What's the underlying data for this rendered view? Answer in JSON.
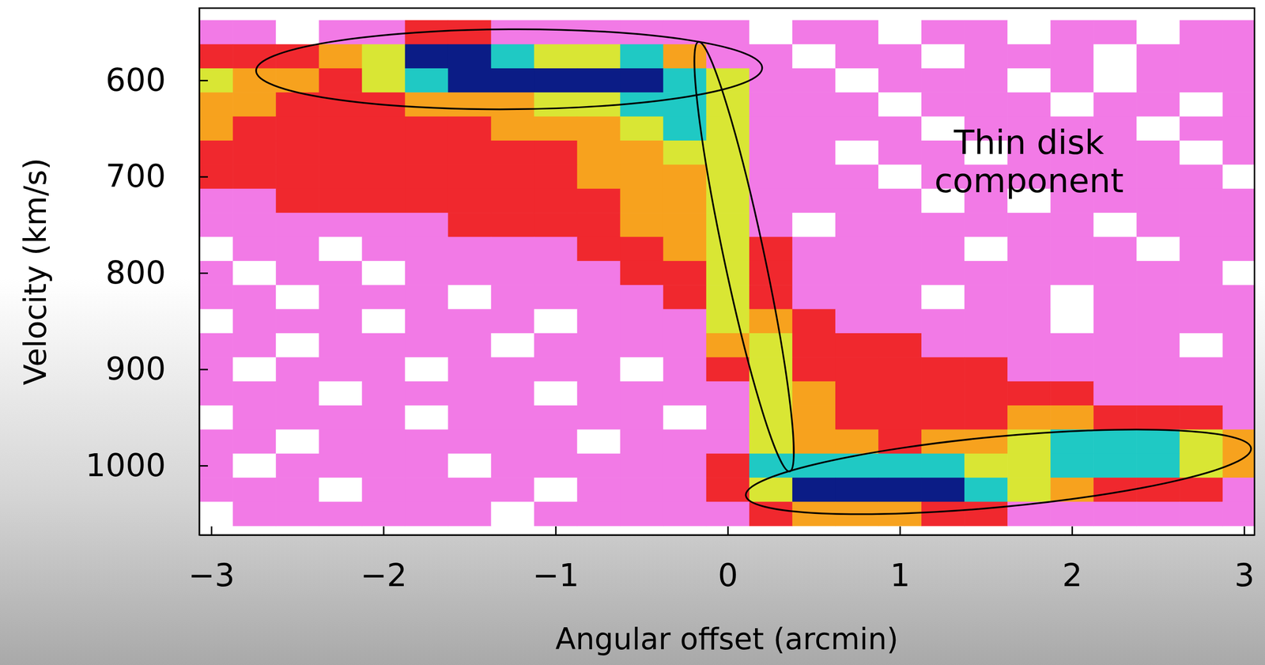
{
  "chart_data": {
    "type": "heatmap",
    "xlabel": "Angular offset (arcmin)",
    "ylabel": "Velocity (km/s)",
    "xlim": [
      -3.07,
      3.06
    ],
    "ylim": [
      1072,
      525
    ],
    "xticks": [
      {
        "value": -3,
        "label": "−3"
      },
      {
        "value": -2,
        "label": "−2"
      },
      {
        "value": -1,
        "label": "−1"
      },
      0,
      1,
      2,
      3
    ],
    "yticks": [
      600,
      700,
      800,
      900,
      1000
    ],
    "colors": [
      "#ffffff",
      "#f27ae6",
      "#f0282e",
      "#f7a21e",
      "#d9e634",
      "#1fc9c4",
      "#0b1c86"
    ],
    "x": [
      -3,
      -2.75,
      -2.5,
      -2.25,
      -2,
      -1.75,
      -1.5,
      -1.25,
      -1,
      -0.75,
      -0.5,
      -0.25,
      0,
      0.25,
      0.5,
      0.75,
      1,
      1.25,
      1.5,
      1.75,
      2,
      2.25,
      2.5,
      2.75,
      3
    ],
    "y": [
      550,
      575,
      600,
      625,
      650,
      675,
      700,
      725,
      750,
      775,
      800,
      825,
      850,
      875,
      900,
      925,
      950,
      975,
      1000,
      1025,
      1050
    ],
    "values": [
      [
        1,
        1,
        0,
        1,
        1,
        2,
        2,
        1,
        1,
        1,
        1,
        1,
        1,
        0,
        1,
        1,
        0,
        1,
        1,
        0,
        1,
        1,
        0,
        1,
        1
      ],
      [
        2,
        2,
        2,
        3,
        4,
        6,
        6,
        5,
        4,
        4,
        5,
        3,
        1,
        1,
        0,
        1,
        1,
        0,
        1,
        1,
        1,
        0,
        1,
        1,
        1
      ],
      [
        4,
        3,
        3,
        2,
        4,
        5,
        6,
        6,
        6,
        6,
        6,
        5,
        4,
        1,
        1,
        0,
        1,
        1,
        1,
        0,
        1,
        0,
        1,
        1,
        1
      ],
      [
        3,
        3,
        2,
        2,
        2,
        3,
        3,
        3,
        4,
        4,
        5,
        5,
        4,
        1,
        1,
        1,
        0,
        1,
        1,
        1,
        0,
        1,
        1,
        0,
        1
      ],
      [
        3,
        2,
        2,
        2,
        2,
        2,
        2,
        3,
        3,
        3,
        4,
        5,
        4,
        1,
        1,
        1,
        1,
        0,
        1,
        1,
        1,
        1,
        0,
        1,
        1
      ],
      [
        2,
        2,
        2,
        2,
        2,
        2,
        2,
        2,
        2,
        3,
        3,
        4,
        4,
        1,
        1,
        0,
        1,
        1,
        0,
        1,
        1,
        1,
        1,
        0,
        1
      ],
      [
        2,
        2,
        2,
        2,
        2,
        2,
        2,
        2,
        2,
        3,
        3,
        3,
        4,
        1,
        1,
        1,
        0,
        1,
        1,
        1,
        1,
        1,
        1,
        1,
        0
      ],
      [
        1,
        1,
        2,
        2,
        2,
        2,
        2,
        2,
        2,
        2,
        3,
        3,
        4,
        1,
        1,
        1,
        1,
        0,
        1,
        0,
        1,
        1,
        1,
        1,
        1
      ],
      [
        1,
        1,
        1,
        1,
        1,
        1,
        2,
        2,
        2,
        2,
        3,
        3,
        4,
        1,
        0,
        1,
        1,
        1,
        1,
        1,
        1,
        0,
        1,
        1,
        1
      ],
      [
        0,
        1,
        1,
        0,
        1,
        1,
        1,
        1,
        1,
        2,
        2,
        3,
        4,
        2,
        1,
        1,
        1,
        1,
        0,
        1,
        1,
        1,
        0,
        1,
        1
      ],
      [
        1,
        0,
        1,
        1,
        0,
        1,
        1,
        1,
        1,
        1,
        2,
        2,
        4,
        2,
        1,
        1,
        1,
        1,
        1,
        1,
        1,
        1,
        1,
        1,
        0
      ],
      [
        1,
        1,
        0,
        1,
        1,
        1,
        0,
        1,
        1,
        1,
        1,
        2,
        4,
        2,
        1,
        1,
        1,
        0,
        1,
        1,
        0,
        1,
        1,
        1,
        1
      ],
      [
        0,
        1,
        1,
        1,
        0,
        1,
        1,
        1,
        0,
        1,
        1,
        1,
        4,
        3,
        2,
        1,
        1,
        1,
        1,
        1,
        0,
        1,
        1,
        1,
        1
      ],
      [
        1,
        1,
        0,
        1,
        1,
        1,
        1,
        0,
        1,
        1,
        1,
        1,
        3,
        4,
        2,
        2,
        2,
        1,
        1,
        1,
        1,
        1,
        1,
        0,
        1
      ],
      [
        1,
        0,
        1,
        1,
        1,
        0,
        1,
        1,
        1,
        1,
        0,
        1,
        2,
        4,
        2,
        2,
        2,
        2,
        2,
        1,
        1,
        1,
        1,
        1,
        1
      ],
      [
        1,
        1,
        1,
        0,
        1,
        1,
        1,
        1,
        0,
        1,
        1,
        1,
        1,
        4,
        3,
        2,
        2,
        2,
        2,
        2,
        2,
        1,
        1,
        1,
        1
      ],
      [
        0,
        1,
        1,
        1,
        1,
        0,
        1,
        1,
        1,
        1,
        1,
        0,
        1,
        4,
        3,
        2,
        2,
        2,
        2,
        3,
        3,
        2,
        2,
        2,
        1
      ],
      [
        1,
        1,
        0,
        1,
        1,
        1,
        1,
        1,
        1,
        0,
        1,
        1,
        1,
        4,
        3,
        3,
        2,
        3,
        3,
        4,
        5,
        5,
        5,
        4,
        3
      ],
      [
        1,
        0,
        1,
        1,
        1,
        1,
        0,
        1,
        1,
        1,
        1,
        1,
        2,
        5,
        5,
        5,
        5,
        5,
        4,
        4,
        5,
        5,
        5,
        4,
        3
      ],
      [
        1,
        1,
        1,
        0,
        1,
        1,
        1,
        1,
        0,
        1,
        1,
        1,
        2,
        4,
        6,
        6,
        6,
        6,
        5,
        4,
        3,
        2,
        2,
        2,
        1
      ],
      [
        0,
        1,
        1,
        1,
        1,
        1,
        1,
        0,
        1,
        1,
        1,
        1,
        1,
        2,
        3,
        3,
        3,
        2,
        2,
        1,
        1,
        1,
        1,
        1,
        1
      ]
    ],
    "annotations": [
      {
        "type": "ellipse",
        "x": [
          -2.74,
          0.2
        ],
        "y": [
          590,
          587
        ],
        "minor_x": -1.28,
        "minor_y": 547
      },
      {
        "type": "ellipse",
        "x": [
          -0.17,
          0.36
        ],
        "y": [
          560,
          1006
        ],
        "minor_x": 0.21,
        "minor_y": 779
      },
      {
        "type": "ellipse",
        "x": [
          0.105,
          3.04
        ],
        "y": [
          1031,
          982
        ],
        "minor_x": 1.59,
        "minor_y": 1043
      },
      {
        "type": "text",
        "text": "Thin disk component",
        "x": 1.75,
        "y": 684
      }
    ]
  }
}
